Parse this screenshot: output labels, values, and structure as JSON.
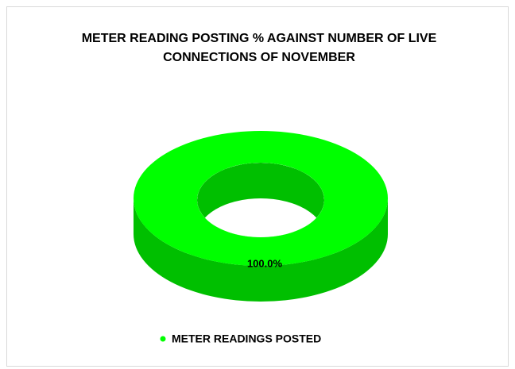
{
  "chart_data": {
    "type": "doughnut",
    "title": [
      "METER READING POSTING % AGAINST NUMBER OF LIVE",
      "CONNECTIONS OF NOVEMBER"
    ],
    "categories": [
      "METER READINGS POSTED"
    ],
    "values": [
      100
    ],
    "value_labels": [
      "100.0%"
    ],
    "colors": [
      "#00ff00"
    ],
    "legend": "bottom"
  }
}
